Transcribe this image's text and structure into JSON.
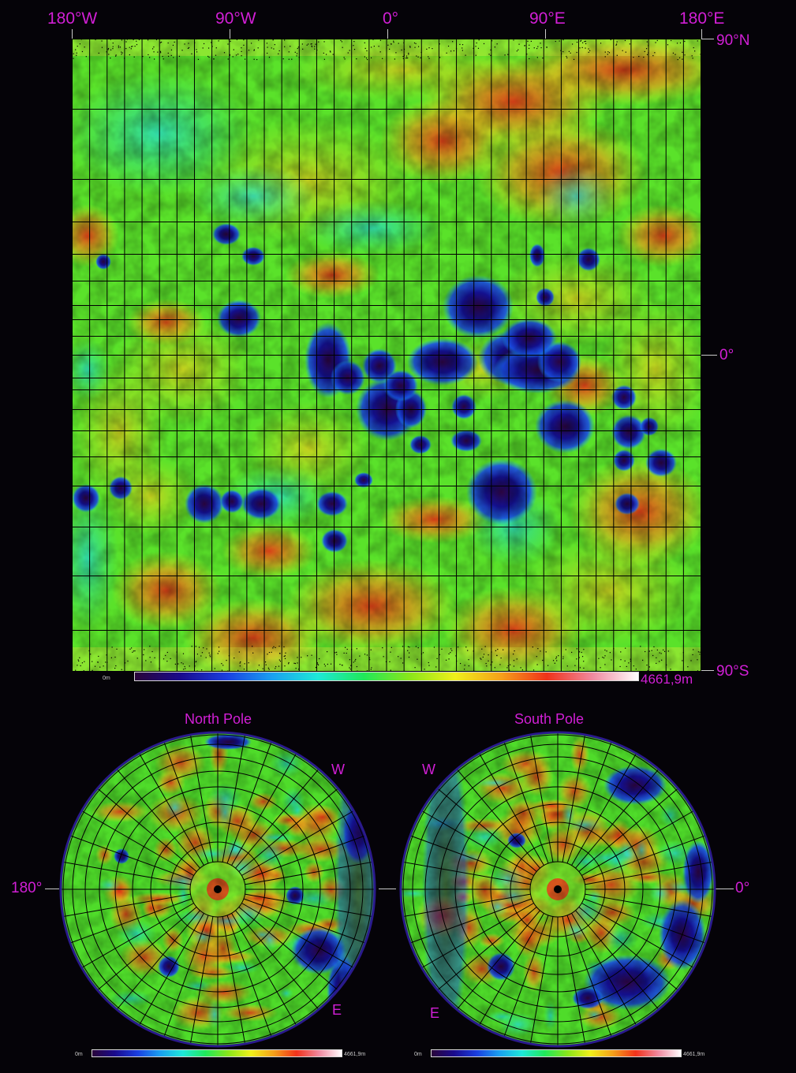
{
  "map": {
    "longitude_labels": [
      "180°W",
      "90°W",
      "0°",
      "90°E",
      "180°E"
    ],
    "latitude_labels": {
      "north": "90°N",
      "equator": "0°",
      "south": "90°S"
    },
    "scale": {
      "min_label": "0m",
      "max_label": "4661,9m"
    },
    "grid_divisions": {
      "longitude": 36,
      "latitude": 18
    }
  },
  "polar_maps": {
    "north": {
      "title": "North Pole",
      "left_label": "180°",
      "w_label": "W",
      "e_label": "E",
      "scale_min": "0m",
      "scale_max": "4661,9m"
    },
    "south": {
      "title": "South Pole",
      "right_label": "0°",
      "w_label": "W",
      "e_label": "E",
      "scale_min": "0m",
      "scale_max": "4661,9m"
    }
  },
  "colormap": [
    "#2a0538",
    "#1a0a8c",
    "#1a3ee0",
    "#1aa0f0",
    "#1ee8d8",
    "#20e85a",
    "#8ae61a",
    "#f0f01a",
    "#f5a01a",
    "#f0321a",
    "#f08aa0",
    "#ffffff"
  ]
}
